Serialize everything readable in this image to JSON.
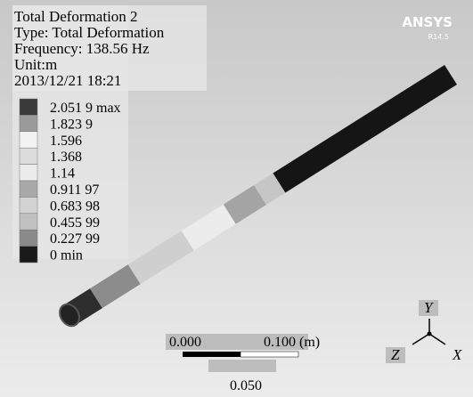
{
  "header": {
    "title": "Total Deformation 2",
    "type": "Type: Total Deformation",
    "frequency": "Frequency: 138.56 Hz",
    "unit": "Unit:m",
    "timestamp": "2013/12/21 18:21"
  },
  "logo": {
    "name": "ANSYS",
    "version": "R14.5"
  },
  "legend": {
    "items": [
      {
        "label": "2.051 9 max",
        "color": "#3a3a3a"
      },
      {
        "label": "1.823 9",
        "color": "#9a9a9a"
      },
      {
        "label": "1.596",
        "color": "#f2f2f2"
      },
      {
        "label": "1.368",
        "color": "#dcdcdc"
      },
      {
        "label": "1.14",
        "color": "#ececec"
      },
      {
        "label": "0.911 97",
        "color": "#a8a8a8"
      },
      {
        "label": "0.683 98",
        "color": "#d2d2d2"
      },
      {
        "label": "0.455 99",
        "color": "#c0c0c0"
      },
      {
        "label": "0.227 99",
        "color": "#8a8a8a"
      },
      {
        "label": "0 min",
        "color": "#1a1a1a"
      }
    ]
  },
  "scale": {
    "left": "0.000",
    "right": "0.100 (m)",
    "middle": "0.050"
  },
  "triad": {
    "y": "Y",
    "z": "Z",
    "x": "X"
  }
}
